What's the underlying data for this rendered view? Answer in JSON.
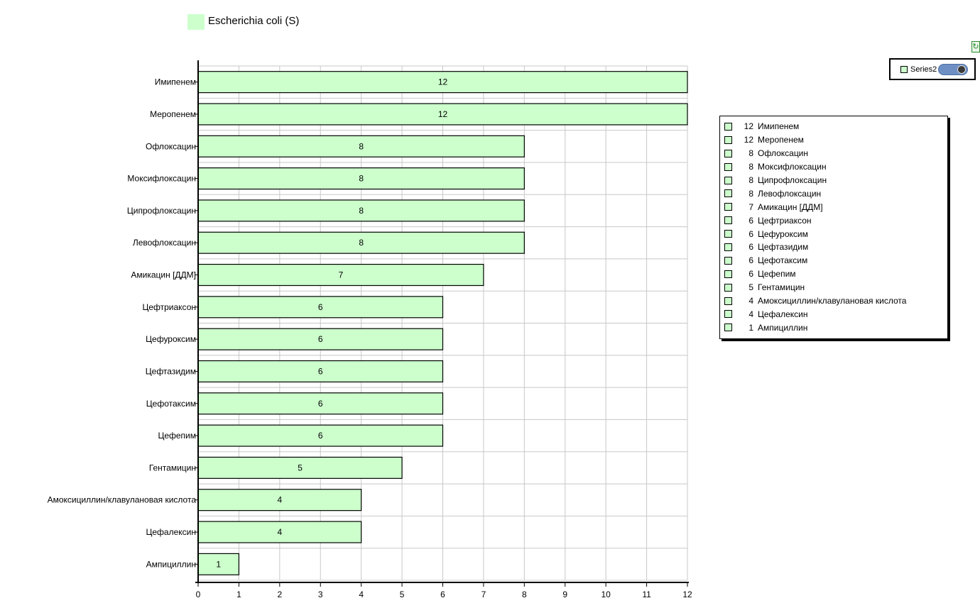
{
  "colors": {
    "bar_fill": "#ccffcc",
    "bar_stroke": "#000000",
    "grid": "#c8c8c8",
    "legend_swatch": "#ccffcc",
    "toggle": "#6e8fc4"
  },
  "title_swatch_color": "#ccffcc",
  "series_box": {
    "name": "Series2",
    "toggle_on": true
  },
  "refresh_icon": "refresh-icon",
  "chart_data": {
    "type": "bar",
    "orientation": "horizontal",
    "title": "Escherichia coli (S)",
    "categories": [
      "Имипенем",
      "Меропенем",
      "Офлоксацин",
      "Моксифлоксацин",
      "Ципрофлоксацин",
      "Левофлоксацин",
      "Амикацин [ДДМ]",
      "Цефтриаксон",
      "Цефуроксим",
      "Цефтазидим",
      "Цефотаксим",
      "Цефепим",
      "Гентамицин",
      "Амоксициллин/клавулановая кислота",
      "Цефалексин",
      "Ампициллин"
    ],
    "values": [
      12,
      12,
      8,
      8,
      8,
      8,
      7,
      6,
      6,
      6,
      6,
      6,
      5,
      4,
      4,
      1
    ],
    "xlim": [
      0,
      12
    ],
    "xticks": [
      "0",
      "1",
      "2",
      "3",
      "4",
      "5",
      "6",
      "7",
      "8",
      "9",
      "10",
      "11",
      "12"
    ],
    "grid": true,
    "data_labels": true,
    "legend_position": "right",
    "legend": [
      "12 Имипенем",
      "12 Меропенем",
      "8 Офлоксацин",
      "8 Моксифлоксацин",
      "8 Ципрофлоксацин",
      "8 Левофлоксацин",
      "7 Амикацин [ДДМ]",
      "6 Цефтриаксон",
      "6 Цефуроксим",
      "6 Цефтазидим",
      "6 Цефотаксим",
      "6 Цефепим",
      "5 Гентамицин",
      "4 Амоксициллин/клавулановая кислота",
      "4 Цефалексин",
      "1 Ампициллин"
    ]
  }
}
